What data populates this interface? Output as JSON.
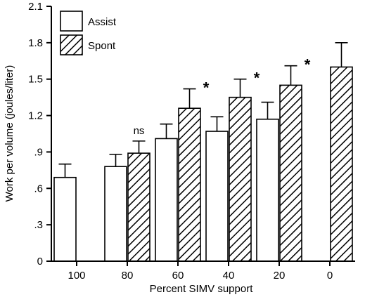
{
  "chart_data": {
    "type": "bar",
    "xlabel": "Percent SIMV support",
    "ylabel": "Work per volume (joules/liter)",
    "ylim": [
      0,
      2.1
    ],
    "y_ticks": [
      {
        "value": 0,
        "label": "0"
      },
      {
        "value": 0.3,
        "label": ".3"
      },
      {
        "value": 0.6,
        "label": ".6"
      },
      {
        "value": 0.9,
        "label": ".9"
      },
      {
        "value": 1.2,
        "label": "1.2"
      },
      {
        "value": 1.5,
        "label": "1.5"
      },
      {
        "value": 1.8,
        "label": "1.8"
      },
      {
        "value": 2.1,
        "label": "2.1"
      }
    ],
    "categories": [
      "100",
      "80",
      "60",
      "40",
      "20",
      "0"
    ],
    "series": [
      {
        "name": "Assist",
        "pattern": "solid-white",
        "values": [
          0.69,
          0.78,
          1.01,
          1.07,
          1.17,
          null
        ],
        "error": [
          0.11,
          0.1,
          0.12,
          0.12,
          0.14,
          null
        ]
      },
      {
        "name": "Spont",
        "pattern": "diagonal-hatch",
        "values": [
          null,
          0.89,
          1.26,
          1.35,
          1.45,
          1.6
        ],
        "error": [
          null,
          0.1,
          0.16,
          0.15,
          0.16,
          0.2
        ]
      }
    ],
    "annotations": [
      {
        "category": "80",
        "text": "ns"
      },
      {
        "category": "60",
        "text": "*"
      },
      {
        "category": "40",
        "text": "*"
      },
      {
        "category": "20",
        "text": "*"
      }
    ],
    "legend_position": "top-left",
    "grid": false
  }
}
